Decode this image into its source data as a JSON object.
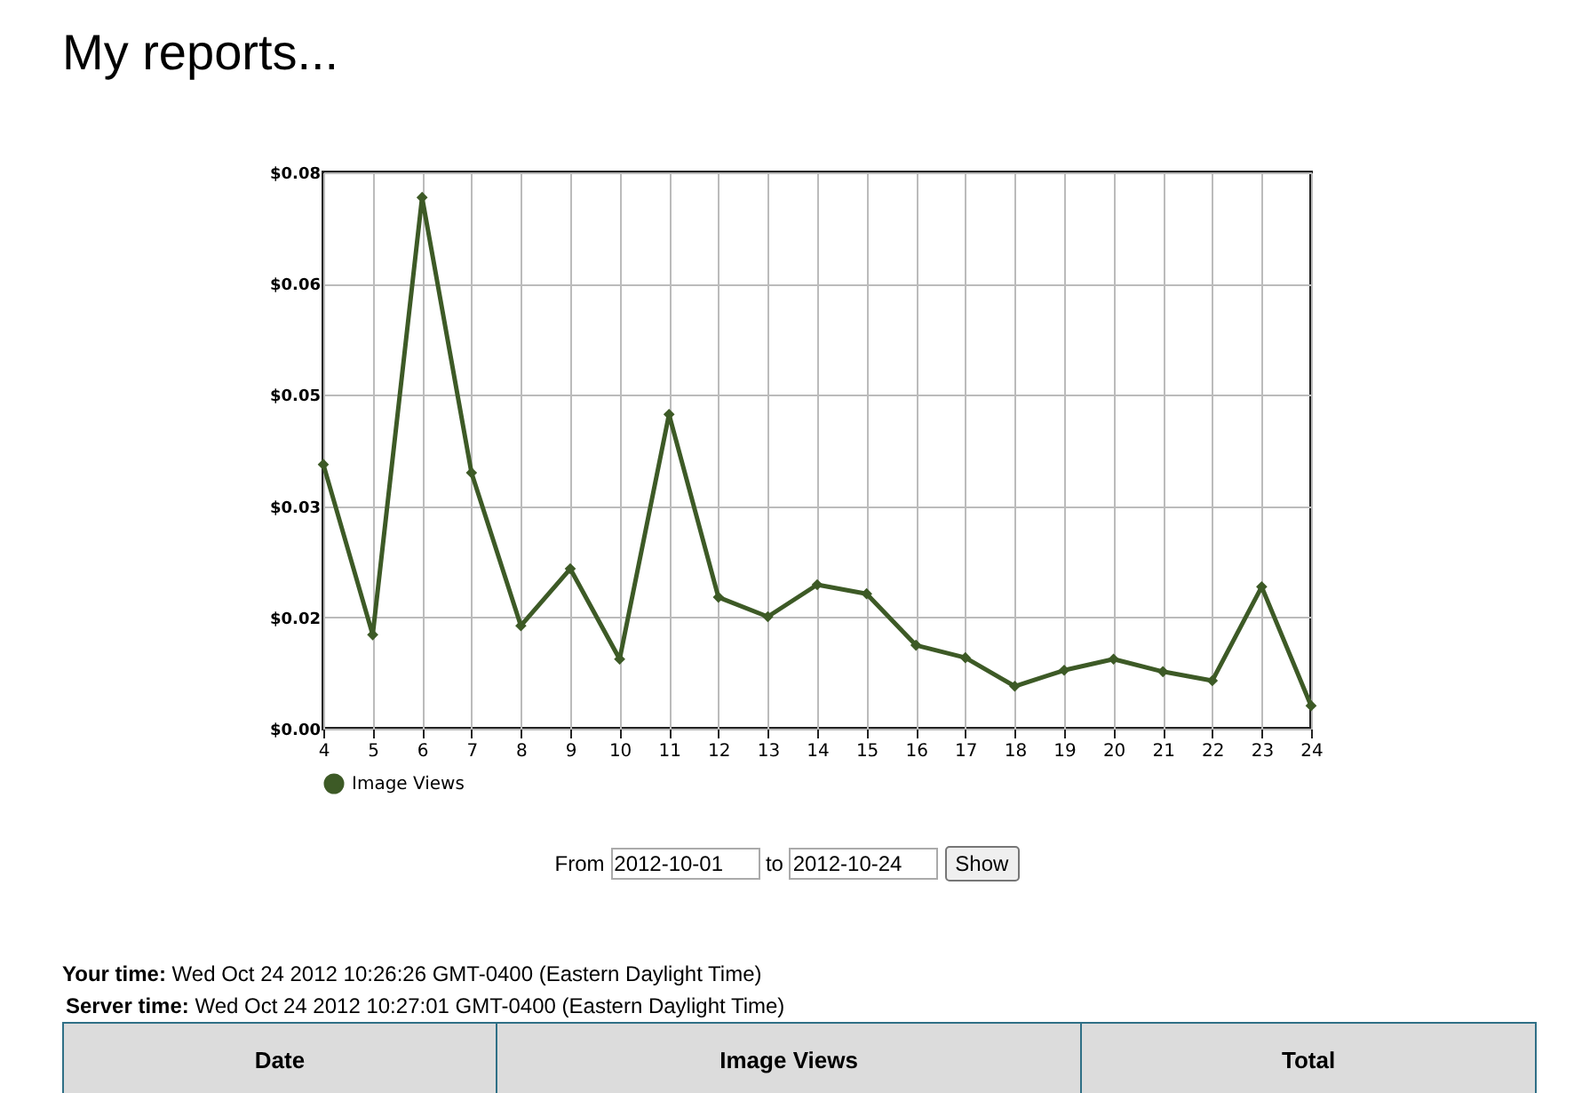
{
  "chart_data": {
    "type": "line",
    "title": "My reports...",
    "x": [
      4,
      5,
      6,
      7,
      8,
      9,
      10,
      11,
      12,
      13,
      14,
      15,
      16,
      17,
      18,
      19,
      20,
      21,
      22,
      23,
      24
    ],
    "series": [
      {
        "name": "Image Views",
        "color": "#3d5a26",
        "values": [
          0.038,
          0.0135,
          0.0764,
          0.0368,
          0.0148,
          0.023,
          0.01,
          0.0452,
          0.0189,
          0.0161,
          0.0207,
          0.0194,
          0.012,
          0.0102,
          0.0061,
          0.0084,
          0.01,
          0.0082,
          0.0069,
          0.0204,
          0.0033
        ]
      }
    ],
    "xlim": [
      4,
      24
    ],
    "xticks": [
      4,
      5,
      6,
      7,
      8,
      9,
      10,
      11,
      12,
      13,
      14,
      15,
      16,
      17,
      18,
      19,
      20,
      21,
      22,
      23,
      24
    ],
    "ylim": [
      0,
      0.08
    ],
    "yticks": [
      {
        "value": 0,
        "label": "$0.00"
      },
      {
        "value": 0.016,
        "label": "$0.02"
      },
      {
        "value": 0.032,
        "label": "$0.03"
      },
      {
        "value": 0.048,
        "label": "$0.05"
      },
      {
        "value": 0.064,
        "label": "$0.06"
      },
      {
        "value": 0.08,
        "label": "$0.08"
      }
    ],
    "grid": true,
    "legend": "bottom",
    "marker": "diamond",
    "line_style": "solid",
    "annotations": [
      "From",
      "2012-10-01",
      "to",
      "2012-10-24",
      "Show",
      "Your time:",
      "Wed Oct 24 2012 10:26:26 GMT-0400 (Eastern Daylight Time)",
      "Server time:",
      "Wed Oct 24 2012 10:27:01 GMT-0400 (Eastern Daylight Time)",
      "Date",
      "Image Views",
      "Total"
    ]
  }
}
